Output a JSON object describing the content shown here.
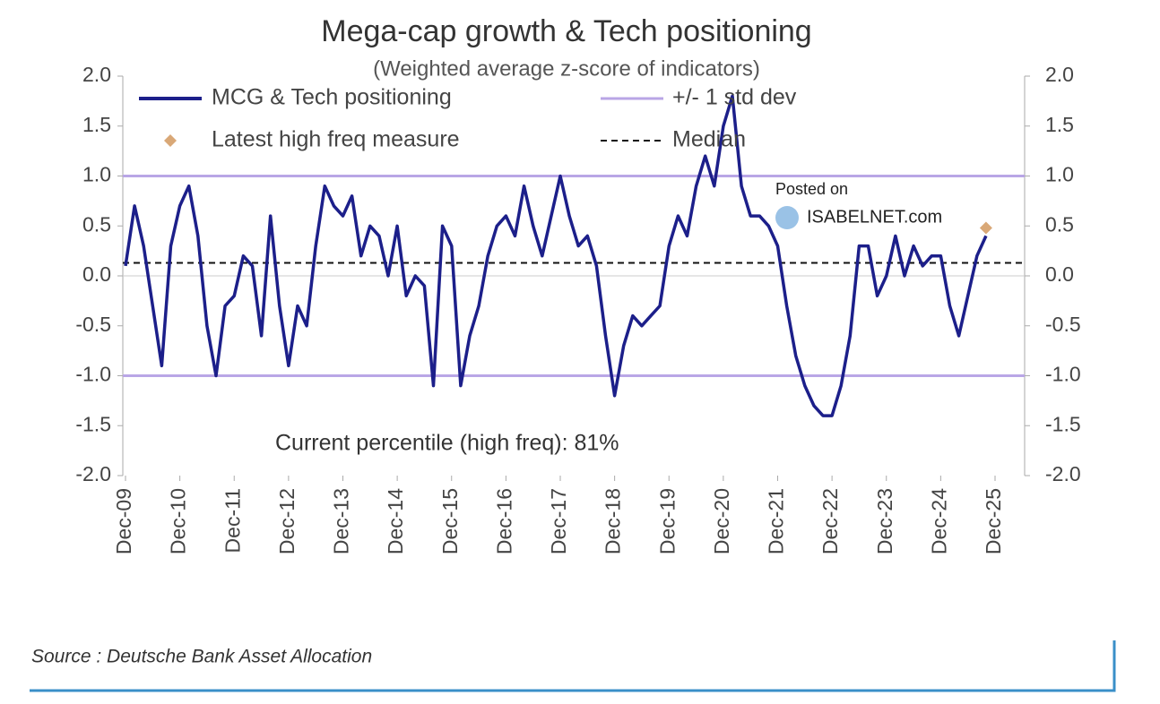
{
  "chart_data": {
    "type": "line",
    "title": "Mega-cap growth & Tech positioning",
    "subtitle": "(Weighted average z-score of indicators)",
    "annotation": "Current percentile (high freq): 81%",
    "watermark": [
      "Posted on",
      "ISABELNET.com"
    ],
    "source": "Source : Deutsche Bank Asset Allocation",
    "x": [
      "Dec-09",
      "Feb-10",
      "Apr-10",
      "Jun-10",
      "Aug-10",
      "Oct-10",
      "Dec-10",
      "Feb-11",
      "Apr-11",
      "Jun-11",
      "Aug-11",
      "Oct-11",
      "Dec-11",
      "Feb-12",
      "Apr-12",
      "Jun-12",
      "Aug-12",
      "Oct-12",
      "Dec-12",
      "Feb-13",
      "Apr-13",
      "Jun-13",
      "Aug-13",
      "Oct-13",
      "Dec-13",
      "Feb-14",
      "Apr-14",
      "Jun-14",
      "Aug-14",
      "Oct-14",
      "Dec-14",
      "Feb-15",
      "Apr-15",
      "Jun-15",
      "Aug-15",
      "Oct-15",
      "Dec-15",
      "Feb-16",
      "Apr-16",
      "Jun-16",
      "Aug-16",
      "Oct-16",
      "Dec-16",
      "Feb-17",
      "Apr-17",
      "Jun-17",
      "Aug-17",
      "Oct-17",
      "Dec-17",
      "Feb-18",
      "Apr-18",
      "Jun-18",
      "Aug-18",
      "Oct-18",
      "Dec-18",
      "Feb-19",
      "Apr-19",
      "Jun-19",
      "Aug-19",
      "Oct-19",
      "Dec-19",
      "Feb-20",
      "Apr-20",
      "Jun-20",
      "Aug-20",
      "Oct-20",
      "Dec-20",
      "Feb-21",
      "Apr-21",
      "Jun-21",
      "Aug-21",
      "Oct-21",
      "Dec-21",
      "Feb-22",
      "Apr-22",
      "Jun-22",
      "Aug-22",
      "Oct-22",
      "Dec-22",
      "Feb-23",
      "Apr-23",
      "Jun-23",
      "Aug-23",
      "Oct-23",
      "Dec-23",
      "Feb-24",
      "Apr-24",
      "Jun-24",
      "Aug-24",
      "Oct-24",
      "Dec-24",
      "Feb-25",
      "Apr-25",
      "Jun-25",
      "Aug-25",
      "Oct-25"
    ],
    "series": [
      {
        "name": "MCG & Tech positioning",
        "color": "#1c1f8a",
        "values": [
          0.1,
          0.7,
          0.3,
          -0.3,
          -0.9,
          0.3,
          0.7,
          0.9,
          0.4,
          -0.5,
          -1.0,
          -0.3,
          -0.2,
          0.2,
          0.1,
          -0.6,
          0.6,
          -0.3,
          -0.9,
          -0.3,
          -0.5,
          0.3,
          0.9,
          0.7,
          0.6,
          0.8,
          0.2,
          0.5,
          0.4,
          0.0,
          0.5,
          -0.2,
          0.0,
          -0.1,
          -1.1,
          0.5,
          0.3,
          -1.1,
          -0.6,
          -0.3,
          0.2,
          0.5,
          0.6,
          0.4,
          0.9,
          0.5,
          0.2,
          0.6,
          1.0,
          0.6,
          0.3,
          0.4,
          0.1,
          -0.6,
          -1.2,
          -0.7,
          -0.4,
          -0.5,
          -0.4,
          -0.3,
          0.3,
          0.6,
          0.4,
          0.9,
          1.2,
          0.9,
          1.5,
          1.8,
          0.9,
          0.6,
          0.6,
          0.5,
          0.3,
          -0.3,
          -0.8,
          -1.1,
          -1.3,
          -1.4,
          -1.4,
          -1.1,
          -0.6,
          0.3,
          0.3,
          -0.2,
          0.0,
          0.4,
          0.0,
          0.3,
          0.1,
          0.2,
          0.2,
          -0.3,
          -0.6,
          -0.2,
          0.2,
          0.4
        ]
      }
    ],
    "latest": {
      "name": "Latest high freq measure",
      "color": "#d9a877",
      "x": "Oct-25",
      "value": 0.48
    },
    "std_dev": {
      "name": "+/- 1 std dev",
      "color": "#b9a6e6",
      "values": [
        1.0,
        -1.0
      ]
    },
    "median": {
      "name": "Median",
      "color": "#111111",
      "value": 0.13
    },
    "xlim": [
      "Dec-09",
      "Dec-25"
    ],
    "xticks": [
      "Dec-09",
      "Dec-10",
      "Dec-11",
      "Dec-12",
      "Dec-13",
      "Dec-14",
      "Dec-15",
      "Dec-16",
      "Dec-17",
      "Dec-18",
      "Dec-19",
      "Dec-20",
      "Dec-21",
      "Dec-22",
      "Dec-23",
      "Dec-24",
      "Dec-25"
    ],
    "ylim": [
      -2,
      2
    ],
    "yticks": [
      {
        "value": -2,
        "label": "-2.0"
      },
      -1.5,
      {
        "value": -1,
        "label": "-1.0"
      },
      -0.5,
      {
        "value": 0,
        "label": "0.0"
      },
      0.5,
      {
        "value": 1,
        "label": "1.0"
      },
      1.5,
      {
        "value": 2,
        "label": "2.0"
      }
    ],
    "y2lim": [
      -2,
      2
    ],
    "y2ticks": [
      {
        "value": -2,
        "label": "-2.0"
      },
      -1.5,
      {
        "value": -1,
        "label": "-1.0"
      },
      -0.5,
      {
        "value": 0,
        "label": "0.0"
      },
      0.5,
      {
        "value": 1,
        "label": "1.0"
      },
      1.5,
      {
        "value": 2,
        "label": "2.0"
      }
    ]
  }
}
